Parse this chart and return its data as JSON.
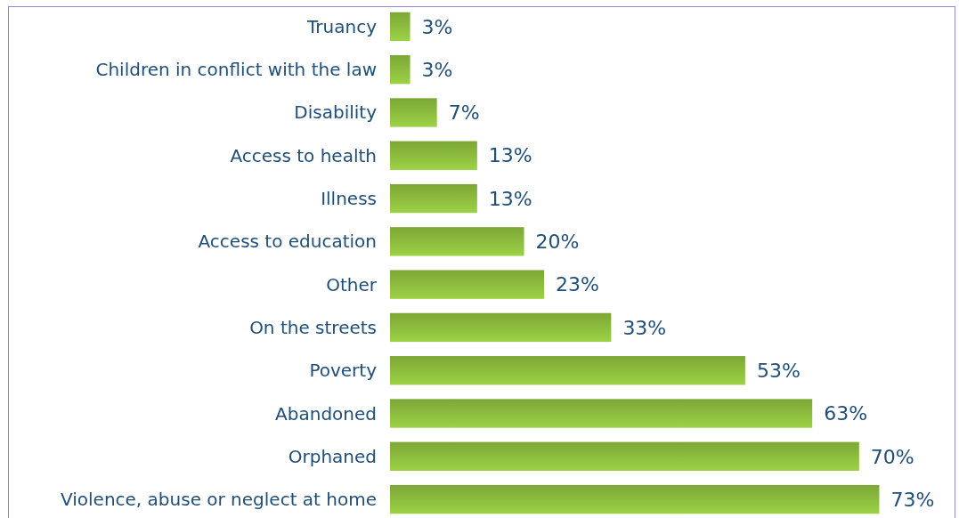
{
  "chart_data": {
    "type": "bar",
    "orientation": "horizontal",
    "categories": [
      "Truancy",
      "Children in conflict with the law",
      "Disability",
      "Access to health",
      "Illness",
      "Access to education",
      "Other",
      "On the streets",
      "Poverty",
      "Abandoned",
      "Orphaned",
      "Violence, abuse or neglect at home"
    ],
    "values": [
      3,
      3,
      7,
      13,
      13,
      20,
      23,
      33,
      53,
      63,
      70,
      73
    ],
    "value_labels": [
      "3%",
      "3%",
      "7%",
      "13%",
      "13%",
      "20%",
      "23%",
      "33%",
      "53%",
      "63%",
      "70%",
      "73%"
    ],
    "color": "#8dbd3e"
  }
}
